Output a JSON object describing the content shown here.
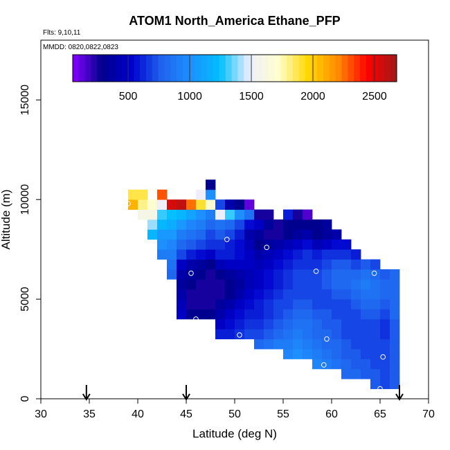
{
  "chart_data": {
    "type": "heatmap",
    "title": "ATOM1 North_America Ethane_PFP",
    "flights_note": "Flts: 9,10,11",
    "dates_note": "MMDD: 0820,0822,0823",
    "xlabel": "Latitude (deg N)",
    "ylabel": "Altitude (m)",
    "xlim": [
      30,
      70
    ],
    "ylim": [
      0,
      18000
    ],
    "xticks": [
      "30",
      "35",
      "40",
      "45",
      "50",
      "55",
      "60",
      "65",
      "70"
    ],
    "yticks": [
      "0",
      "5000",
      "10000",
      "15000"
    ],
    "colorbar": {
      "range": [
        50,
        2680
      ],
      "ticks": [
        "500",
        "1000",
        "1500",
        "2000",
        "2500"
      ],
      "colors": [
        "#8800ff",
        "#00008b",
        "#0000cd",
        "#1f62ee",
        "#1e90ff",
        "#00bfff",
        "#eeeeff",
        "#ffffcc",
        "#ffd700",
        "#ff8c00",
        "#ff0000",
        "#a01818"
      ]
    },
    "cell_size": {
      "lat": 1,
      "alt": 500
    },
    "columns": [
      {
        "lat": 39,
        "alt_min": 9500,
        "values": [
          2080,
          1880
        ]
      },
      {
        "lat": 40,
        "alt_min": 9000,
        "values": [
          1600,
          1800,
          1880
        ]
      },
      {
        "lat": 41,
        "alt_min": 8000,
        "values": [
          1200,
          1400,
          1600,
          1700
        ]
      },
      {
        "lat": 42,
        "alt_min": 7000,
        "values": [
          900,
          1000,
          1050,
          1200,
          1300,
          1500,
          2300
        ]
      },
      {
        "lat": 43,
        "alt_min": 6000,
        "values": [
          800,
          850,
          900,
          950,
          1050,
          1150,
          1250,
          2550
        ]
      },
      {
        "lat": 44,
        "alt_min": 4000,
        "values": [
          500,
          450,
          400,
          350,
          400,
          500,
          700,
          800,
          900,
          1050,
          1200,
          2600
        ]
      },
      {
        "lat": 45,
        "alt_min": 4000,
        "values": [
          300,
          250,
          250,
          300,
          350,
          400,
          600,
          750,
          850,
          950,
          1100,
          2250
        ]
      },
      {
        "lat": 46,
        "alt_min": 4000,
        "values": [
          300,
          250,
          250,
          250,
          300,
          350,
          550,
          700,
          800,
          900,
          1000,
          1900,
          1500
        ]
      },
      {
        "lat": 47,
        "alt_min": 4000,
        "values": [
          300,
          250,
          250,
          250,
          250,
          300,
          500,
          650,
          700,
          800,
          900,
          1700,
          1000,
          300
        ]
      },
      {
        "lat": 48,
        "alt_min": 3000,
        "values": [
          600,
          500,
          400,
          350,
          250,
          250,
          300,
          450,
          600,
          650,
          750,
          850,
          1500,
          700
        ]
      },
      {
        "lat": 49,
        "alt_min": 3000,
        "values": [
          600,
          550,
          500,
          400,
          300,
          300,
          350,
          500,
          600,
          600,
          700,
          800,
          1300,
          400
        ]
      },
      {
        "lat": 50,
        "alt_min": 3000,
        "values": [
          650,
          600,
          550,
          500,
          400,
          350,
          400,
          500,
          550,
          550,
          600,
          700,
          1000,
          300
        ]
      },
      {
        "lat": 51,
        "alt_min": 3000,
        "values": [
          700,
          650,
          600,
          550,
          500,
          450,
          450,
          500,
          500,
          450,
          400,
          550,
          850,
          120
        ]
      },
      {
        "lat": 52,
        "alt_min": 2500,
        "values": [
          800,
          700,
          650,
          600,
          600,
          550,
          500,
          500,
          450,
          400,
          300,
          350,
          500,
          250
        ]
      },
      {
        "lat": 53,
        "alt_min": 2500,
        "values": [
          850,
          750,
          700,
          650,
          650,
          600,
          550,
          550,
          500,
          450,
          350,
          250,
          350,
          250
        ]
      },
      {
        "lat": 54,
        "alt_min": 2500,
        "values": [
          900,
          800,
          750,
          700,
          700,
          650,
          600,
          600,
          550,
          500,
          400,
          250,
          250
        ]
      },
      {
        "lat": 55,
        "alt_min": 2000,
        "values": [
          950,
          900,
          850,
          800,
          750,
          700,
          700,
          650,
          650,
          600,
          550,
          450,
          300,
          300,
          600
        ]
      },
      {
        "lat": 56,
        "alt_min": 2000,
        "values": [
          1000,
          950,
          900,
          850,
          800,
          750,
          700,
          700,
          700,
          650,
          600,
          500,
          350,
          300,
          250
        ]
      },
      {
        "lat": 57,
        "alt_min": 2000,
        "values": [
          950,
          900,
          850,
          850,
          800,
          750,
          700,
          700,
          700,
          650,
          650,
          550,
          400,
          300,
          150
        ]
      },
      {
        "lat": 58,
        "alt_min": 1500,
        "values": [
          950,
          900,
          850,
          800,
          800,
          750,
          700,
          700,
          700,
          700,
          650,
          600,
          450,
          300,
          300
        ]
      },
      {
        "lat": 59,
        "alt_min": 1500,
        "values": [
          900,
          850,
          800,
          800,
          750,
          750,
          700,
          700,
          750,
          750,
          700,
          650,
          500,
          350,
          350
        ]
      },
      {
        "lat": 60,
        "alt_min": 1500,
        "values": [
          850,
          800,
          800,
          750,
          750,
          700,
          700,
          750,
          800,
          800,
          750,
          650,
          550,
          400
        ]
      },
      {
        "lat": 61,
        "alt_min": 1000,
        "values": [
          800,
          800,
          750,
          750,
          700,
          700,
          700,
          700,
          750,
          800,
          800,
          750,
          650,
          550
        ]
      },
      {
        "lat": 62,
        "alt_min": 1000,
        "values": [
          800,
          750,
          750,
          700,
          700,
          700,
          700,
          750,
          800,
          850,
          800,
          700,
          600
        ]
      },
      {
        "lat": 63,
        "alt_min": 1000,
        "values": [
          750,
          750,
          700,
          700,
          700,
          700,
          750,
          800,
          850,
          900,
          850,
          750
        ]
      },
      {
        "lat": 64,
        "alt_min": 500,
        "values": [
          750,
          750,
          700,
          700,
          700,
          700,
          700,
          750,
          800,
          850,
          850,
          800,
          700
        ]
      },
      {
        "lat": 65,
        "alt_min": 500,
        "values": [
          700,
          700,
          700,
          700,
          700,
          650,
          650,
          700,
          750,
          800,
          800,
          750
        ]
      },
      {
        "lat": 66,
        "alt_min": 500,
        "values": [
          750,
          750,
          750,
          750,
          750,
          750,
          750,
          800,
          800,
          800,
          800,
          800
        ]
      }
    ],
    "sample_points": [
      {
        "lat": 39,
        "alt": 9800
      },
      {
        "lat": 42.4,
        "alt": 10800
      },
      {
        "lat": 45.5,
        "alt": 6300
      },
      {
        "lat": 46,
        "alt": 4000
      },
      {
        "lat": 47.5,
        "alt": 11900
      },
      {
        "lat": 49.2,
        "alt": 8000
      },
      {
        "lat": 50.5,
        "alt": 3200
      },
      {
        "lat": 51.7,
        "alt": 11500
      },
      {
        "lat": 53.3,
        "alt": 7600
      },
      {
        "lat": 57.2,
        "alt": 10900
      },
      {
        "lat": 58.4,
        "alt": 6400
      },
      {
        "lat": 59.5,
        "alt": 3000
      },
      {
        "lat": 59.2,
        "alt": 1700
      },
      {
        "lat": 63.4,
        "alt": 8000
      },
      {
        "lat": 64.4,
        "alt": 6300
      },
      {
        "lat": 65.3,
        "alt": 2100
      },
      {
        "lat": 65,
        "alt": 500
      },
      {
        "lat": 66.6,
        "alt": 8000
      }
    ],
    "flight_markers": [
      34.7,
      45,
      67
    ]
  }
}
